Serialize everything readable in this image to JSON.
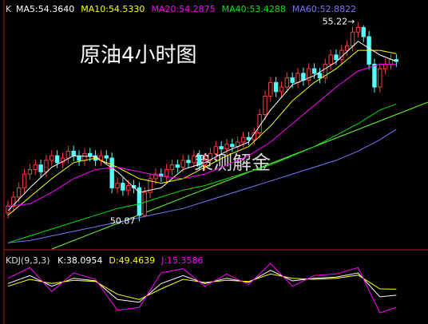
{
  "chart_data": [
    {
      "type": "candlestick",
      "title": "原油4小时图",
      "watermark": "策测解金",
      "axis_label": "K",
      "up_color": "#ff3c3c",
      "down_color": "#54ffff",
      "annotations": [
        {
          "text": "55.22→",
          "x": 64
        },
        {
          "text": "50.87",
          "x": 24
        }
      ],
      "ylim": [
        50.3,
        55.7
      ],
      "open": [
        51.05,
        51.2,
        51.4,
        51.6,
        51.9,
        52.0,
        52.1,
        51.95,
        52.2,
        52.3,
        52.15,
        52.25,
        52.4,
        52.3,
        52.2,
        52.35,
        52.3,
        52.2,
        52.3,
        52.25,
        51.6,
        51.7,
        51.55,
        51.65,
        51.6,
        51.0,
        51.5,
        51.8,
        51.9,
        51.85,
        52.0,
        52.1,
        52.05,
        52.2,
        52.15,
        52.3,
        52.1,
        52.2,
        52.35,
        52.5,
        52.45,
        52.55,
        52.5,
        52.6,
        52.7,
        52.65,
        52.8,
        53.2,
        53.6,
        53.9,
        53.7,
        53.8,
        54.0,
        53.9,
        54.1,
        53.95,
        54.2,
        54.1,
        54.0,
        54.3,
        54.5,
        54.4,
        54.6,
        54.7,
        55.0,
        55.1,
        54.9,
        54.3,
        53.8,
        54.2,
        54.3,
        54.4
      ],
      "high": [
        51.32,
        51.52,
        51.72,
        52.02,
        52.12,
        52.22,
        52.22,
        52.32,
        52.42,
        52.42,
        52.37,
        52.52,
        52.52,
        52.42,
        52.47,
        52.47,
        52.42,
        52.42,
        52.42,
        52.37,
        51.82,
        51.82,
        51.77,
        51.77,
        51.72,
        51.62,
        51.92,
        52.02,
        52.02,
        52.12,
        52.22,
        52.22,
        52.32,
        52.32,
        52.42,
        52.42,
        52.32,
        52.47,
        52.62,
        52.62,
        52.67,
        52.67,
        52.72,
        52.82,
        52.82,
        52.92,
        53.32,
        53.72,
        54.02,
        54.02,
        53.92,
        54.12,
        54.12,
        54.22,
        54.22,
        54.32,
        54.32,
        54.22,
        54.42,
        54.62,
        54.62,
        54.72,
        54.82,
        55.12,
        55.22,
        55.15,
        55.02,
        54.42,
        54.32,
        54.42,
        54.52,
        54.52
      ],
      "low": [
        50.93,
        51.08,
        51.28,
        51.48,
        51.78,
        51.88,
        51.83,
        51.83,
        52.08,
        52.03,
        52.03,
        52.13,
        52.18,
        52.08,
        52.08,
        52.18,
        52.08,
        52.08,
        52.13,
        51.48,
        51.48,
        51.43,
        51.43,
        51.48,
        50.87,
        50.95,
        51.38,
        51.68,
        51.73,
        51.73,
        51.88,
        51.93,
        51.93,
        52.03,
        52.03,
        51.98,
        51.98,
        52.08,
        52.23,
        52.33,
        52.33,
        52.38,
        52.38,
        52.48,
        52.53,
        52.53,
        52.68,
        53.08,
        53.48,
        53.58,
        53.58,
        53.68,
        53.78,
        53.78,
        53.83,
        53.83,
        53.98,
        53.88,
        53.88,
        54.18,
        54.28,
        54.28,
        54.48,
        54.58,
        54.88,
        54.78,
        54.18,
        53.68,
        53.68,
        54.08,
        54.18,
        54.24
      ],
      "close": [
        51.2,
        51.4,
        51.6,
        51.9,
        52.0,
        52.1,
        51.95,
        52.2,
        52.3,
        52.15,
        52.25,
        52.4,
        52.3,
        52.2,
        52.35,
        52.3,
        52.2,
        52.3,
        52.25,
        51.6,
        51.7,
        51.55,
        51.65,
        51.6,
        51.0,
        51.5,
        51.8,
        51.9,
        51.85,
        52.0,
        52.1,
        52.05,
        52.2,
        52.15,
        52.3,
        52.1,
        52.2,
        52.35,
        52.5,
        52.45,
        52.55,
        52.5,
        52.6,
        52.7,
        52.65,
        52.8,
        53.2,
        53.6,
        53.9,
        53.7,
        53.8,
        54.0,
        53.9,
        54.1,
        53.95,
        54.2,
        54.1,
        54.0,
        54.3,
        54.5,
        54.4,
        54.6,
        54.7,
        55.0,
        55.1,
        54.9,
        54.3,
        53.8,
        54.2,
        54.3,
        54.4,
        54.36
      ],
      "series": [
        {
          "name": "MA5:54.3640",
          "color": "#ffffff",
          "x": [
            0,
            4,
            8,
            12,
            16,
            20,
            24,
            28,
            32,
            36,
            40,
            44,
            48,
            52,
            56,
            60,
            64,
            68,
            71
          ],
          "values": [
            51.1,
            51.6,
            52.05,
            52.3,
            52.28,
            51.95,
            51.5,
            51.6,
            52.0,
            52.15,
            52.4,
            52.6,
            53.3,
            53.85,
            54.05,
            54.35,
            54.8,
            54.5,
            54.36
          ]
        },
        {
          "name": "MA10:54.5330",
          "color": "#ffff00",
          "x": [
            0,
            4,
            8,
            12,
            16,
            20,
            24,
            28,
            32,
            36,
            40,
            44,
            48,
            52,
            56,
            60,
            64,
            68,
            71
          ],
          "values": [
            51.0,
            51.4,
            51.8,
            52.15,
            52.25,
            52.05,
            51.8,
            51.7,
            51.8,
            52.05,
            52.3,
            52.5,
            52.95,
            53.5,
            53.9,
            54.2,
            54.6,
            54.6,
            54.53
          ]
        },
        {
          "name": "MA20:54.2875",
          "color": "#ff00ff",
          "x": [
            0,
            4,
            8,
            12,
            16,
            20,
            24,
            28,
            32,
            36,
            40,
            44,
            48,
            52,
            56,
            60,
            64,
            68,
            71
          ],
          "values": [
            51.2,
            51.25,
            51.5,
            51.8,
            52.0,
            52.05,
            51.95,
            51.85,
            51.8,
            51.9,
            52.1,
            52.3,
            52.6,
            53.0,
            53.4,
            53.8,
            54.15,
            54.3,
            54.29
          ]
        },
        {
          "name": "MA40:53.4288",
          "color": "#00e600",
          "x": [
            0,
            4,
            8,
            12,
            16,
            20,
            24,
            28,
            32,
            36,
            40,
            44,
            48,
            52,
            56,
            60,
            64,
            68,
            71
          ],
          "values": [
            50.4,
            50.55,
            50.7,
            50.85,
            51.0,
            51.15,
            51.25,
            51.4,
            51.55,
            51.65,
            51.8,
            51.95,
            52.1,
            52.3,
            52.5,
            52.75,
            53.0,
            53.3,
            53.43
          ]
        },
        {
          "name": "MA60:52.8822",
          "color": "#7878ff",
          "x": [
            0,
            4,
            8,
            12,
            16,
            20,
            24,
            28,
            32,
            36,
            40,
            44,
            48,
            52,
            56,
            60,
            64,
            68,
            71
          ],
          "values": [
            50.4,
            50.45,
            50.55,
            50.65,
            50.75,
            50.85,
            50.95,
            51.05,
            51.15,
            51.3,
            51.45,
            51.6,
            51.75,
            51.9,
            52.05,
            52.2,
            52.4,
            52.65,
            52.88
          ]
        }
      ]
    },
    {
      "type": "line",
      "axis_label": "KDJ(9,3,3)",
      "ylim": [
        -10,
        110
      ],
      "series": [
        {
          "name": "K:38.0954",
          "color": "#ffffff",
          "x": [
            0,
            4,
            8,
            12,
            16,
            20,
            24,
            28,
            32,
            36,
            40,
            44,
            48,
            52,
            56,
            60,
            64,
            68,
            71
          ],
          "values": [
            60,
            75,
            55,
            70,
            65,
            30,
            25,
            60,
            75,
            60,
            70,
            62,
            85,
            65,
            70,
            72,
            80,
            35,
            38.0954
          ]
        },
        {
          "name": "D:49.4639",
          "color": "#ffff00",
          "x": [
            0,
            4,
            8,
            12,
            16,
            20,
            24,
            28,
            32,
            36,
            40,
            44,
            48,
            52,
            56,
            60,
            64,
            68,
            71
          ],
          "values": [
            55,
            68,
            60,
            66,
            64,
            40,
            30,
            50,
            68,
            62,
            66,
            64,
            78,
            70,
            68,
            70,
            76,
            50,
            49.4639
          ]
        },
        {
          "name": "J:15.3586",
          "color": "#ff00ff",
          "x": [
            0,
            4,
            8,
            12,
            16,
            20,
            24,
            28,
            32,
            36,
            40,
            44,
            48,
            52,
            56,
            60,
            64,
            68,
            71
          ],
          "values": [
            70,
            90,
            45,
            80,
            68,
            10,
            15,
            80,
            88,
            55,
            78,
            58,
            98,
            55,
            75,
            78,
            90,
            5,
            15.3586
          ]
        }
      ]
    }
  ]
}
